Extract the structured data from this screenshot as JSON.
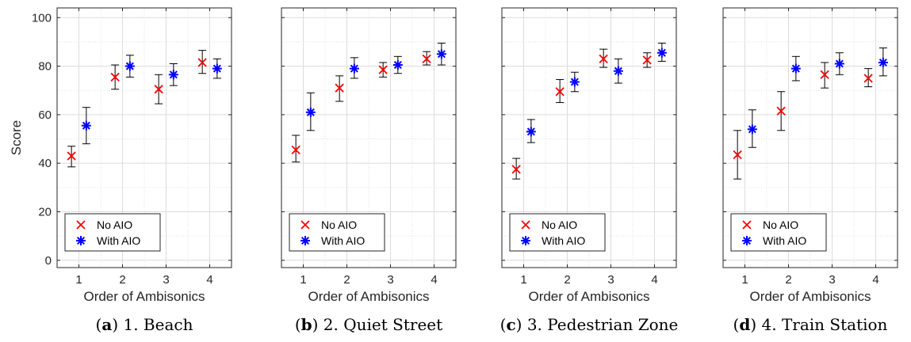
{
  "y_axis_label": "Score",
  "chart_data": [
    {
      "type": "scatter",
      "panel_letter": "a",
      "caption_text": "1. Beach",
      "xlabel": "Order of Ambisonics",
      "ylabel": "Score",
      "x_ticks": [
        "1",
        "2",
        "3",
        "4"
      ],
      "y_ticks": [
        "0",
        "20",
        "40",
        "60",
        "80",
        "100"
      ],
      "xlim": [
        0.5,
        4.5
      ],
      "ylim": [
        -3,
        104
      ],
      "grid": true,
      "legend_position": "bottom-left",
      "series": [
        {
          "name": "No AIO",
          "color": "#ff0000",
          "marker": "x",
          "x": [
            1,
            2,
            3,
            4
          ],
          "y": [
            43,
            75.5,
            70.5,
            81.5
          ],
          "err_low": [
            38.5,
            70.5,
            64.5,
            77
          ],
          "err_high": [
            47,
            80.5,
            76.5,
            86.5
          ]
        },
        {
          "name": "With AIO",
          "color": "#0000ff",
          "marker": "asterisk",
          "x": [
            1,
            2,
            3,
            4
          ],
          "y": [
            55.5,
            80,
            76.5,
            79
          ],
          "err_low": [
            48,
            75.5,
            72,
            75
          ],
          "err_high": [
            63,
            84.5,
            81,
            83
          ]
        }
      ]
    },
    {
      "type": "scatter",
      "panel_letter": "b",
      "caption_text": "2. Quiet Street",
      "xlabel": "Order of Ambisonics",
      "ylabel": "",
      "x_ticks": [
        "1",
        "2",
        "3",
        "4"
      ],
      "y_ticks": [
        "0",
        "20",
        "40",
        "60",
        "80",
        "100"
      ],
      "xlim": [
        0.5,
        4.5
      ],
      "ylim": [
        -3,
        104
      ],
      "grid": true,
      "legend_position": "bottom-left",
      "series": [
        {
          "name": "No AIO",
          "color": "#ff0000",
          "marker": "x",
          "x": [
            1,
            2,
            3,
            4
          ],
          "y": [
            45.5,
            71,
            78.5,
            83
          ],
          "err_low": [
            40.5,
            65.5,
            75.5,
            80.5
          ],
          "err_high": [
            51.5,
            76,
            81.5,
            86
          ]
        },
        {
          "name": "With AIO",
          "color": "#0000ff",
          "marker": "asterisk",
          "x": [
            1,
            2,
            3,
            4
          ],
          "y": [
            61,
            79,
            80.5,
            85
          ],
          "err_low": [
            53.5,
            75,
            77,
            80.5
          ],
          "err_high": [
            69,
            83.5,
            84,
            89.5
          ]
        }
      ]
    },
    {
      "type": "scatter",
      "panel_letter": "c",
      "caption_text": "3. Pedestrian Zone",
      "xlabel": "Order of Ambisonics",
      "ylabel": "",
      "x_ticks": [
        "1",
        "2",
        "3",
        "4"
      ],
      "y_ticks": [
        "0",
        "20",
        "40",
        "60",
        "80",
        "100"
      ],
      "xlim": [
        0.5,
        4.5
      ],
      "ylim": [
        -3,
        104
      ],
      "grid": true,
      "legend_position": "bottom-left",
      "series": [
        {
          "name": "No AIO",
          "color": "#ff0000",
          "marker": "x",
          "x": [
            1,
            2,
            3,
            4
          ],
          "y": [
            37.5,
            69.5,
            83,
            82.5
          ],
          "err_low": [
            33.5,
            65,
            79.5,
            79.5
          ],
          "err_high": [
            42,
            74.5,
            87,
            85.5
          ]
        },
        {
          "name": "With AIO",
          "color": "#0000ff",
          "marker": "asterisk",
          "x": [
            1,
            2,
            3,
            4
          ],
          "y": [
            53,
            73.5,
            78,
            85.5
          ],
          "err_low": [
            48.5,
            69.5,
            73,
            82
          ],
          "err_high": [
            58,
            77.5,
            83,
            89.5
          ]
        }
      ]
    },
    {
      "type": "scatter",
      "panel_letter": "d",
      "caption_text": "4. Train Station",
      "xlabel": "Order of Ambisonics",
      "ylabel": "",
      "x_ticks": [
        "1",
        "2",
        "3",
        "4"
      ],
      "y_ticks": [
        "0",
        "20",
        "40",
        "60",
        "80",
        "100"
      ],
      "xlim": [
        0.5,
        4.5
      ],
      "ylim": [
        -3,
        104
      ],
      "grid": true,
      "legend_position": "bottom-left",
      "series": [
        {
          "name": "No AIO",
          "color": "#ff0000",
          "marker": "x",
          "x": [
            1,
            2,
            3,
            4
          ],
          "y": [
            43.5,
            61.5,
            76.5,
            75
          ],
          "err_low": [
            33.5,
            53.5,
            71,
            71.5
          ],
          "err_high": [
            53.5,
            69.5,
            81.5,
            79
          ]
        },
        {
          "name": "With AIO",
          "color": "#0000ff",
          "marker": "asterisk",
          "x": [
            1,
            2,
            3,
            4
          ],
          "y": [
            54,
            79,
            81,
            81.5
          ],
          "err_low": [
            46.5,
            74,
            76.5,
            76
          ],
          "err_high": [
            62,
            84,
            85.5,
            87.5
          ]
        }
      ]
    }
  ]
}
